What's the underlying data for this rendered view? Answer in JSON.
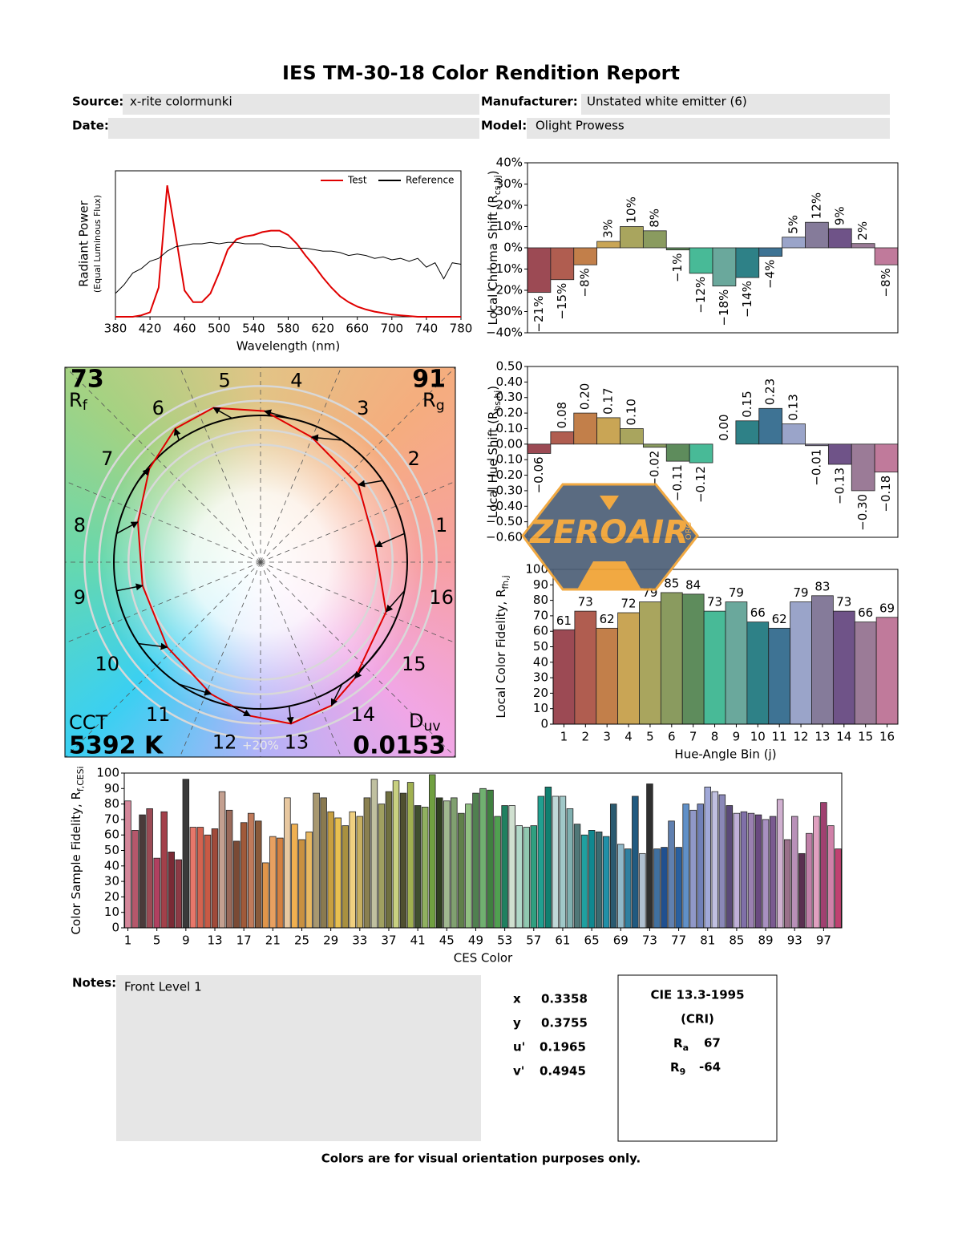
{
  "title": "IES TM-30-18 Color Rendition Report",
  "header": {
    "source_label": "Source:",
    "source": "x-rite colormunki",
    "manufacturer_label": "Manufacturer:",
    "manufacturer": "Unstated white emitter (6)",
    "date_label": "Date:",
    "model_label": "Model:",
    "model": "Olight Prowess"
  },
  "chart_data": [
    {
      "type": "line",
      "xlabel": "Wavelength (nm)",
      "ylabel": "Radiant Power",
      "ylabel_note": "(Equal Luminous Flux)",
      "legend": "upper right",
      "x": [
        380,
        390,
        400,
        410,
        420,
        430,
        440,
        450,
        460,
        470,
        480,
        490,
        500,
        510,
        520,
        530,
        540,
        550,
        560,
        570,
        580,
        590,
        600,
        610,
        620,
        630,
        640,
        650,
        660,
        670,
        680,
        690,
        700,
        710,
        720,
        730,
        740,
        750,
        760,
        770,
        780
      ],
      "xlim": [
        380,
        780
      ],
      "xticks": [
        380,
        420,
        460,
        500,
        540,
        580,
        620,
        660,
        700,
        740,
        780
      ],
      "ylim": [
        0,
        1
      ],
      "series": [
        {
          "name": "Test",
          "color": "#e00000",
          "values": [
            0,
            0,
            0,
            0.01,
            0.03,
            0.2,
            0.9,
            0.55,
            0.18,
            0.1,
            0.1,
            0.16,
            0.3,
            0.46,
            0.53,
            0.55,
            0.56,
            0.58,
            0.59,
            0.59,
            0.56,
            0.5,
            0.42,
            0.35,
            0.27,
            0.2,
            0.14,
            0.1,
            0.07,
            0.05,
            0.035,
            0.025,
            0.015,
            0.01,
            0.005,
            0,
            0,
            0,
            0,
            0,
            0
          ]
        },
        {
          "name": "Reference",
          "color": "#000000",
          "values": [
            0.16,
            0.22,
            0.3,
            0.33,
            0.38,
            0.4,
            0.45,
            0.48,
            0.49,
            0.5,
            0.5,
            0.51,
            0.5,
            0.51,
            0.51,
            0.5,
            0.5,
            0.5,
            0.48,
            0.48,
            0.47,
            0.47,
            0.47,
            0.46,
            0.45,
            0.45,
            0.44,
            0.42,
            0.43,
            0.42,
            0.4,
            0.41,
            0.39,
            0.4,
            0.38,
            0.4,
            0.34,
            0.37,
            0.26,
            0.37,
            0.36
          ]
        }
      ]
    },
    {
      "type": "vector",
      "rf": 73,
      "rf_label": [
        "R",
        "f"
      ],
      "rg": 91,
      "rg_label": [
        "R",
        "g"
      ],
      "cct_label": "CCT",
      "cct": "5392 K",
      "duv_label": [
        "D",
        "uv"
      ],
      "duv": 0.0153,
      "bin_labels": [
        1,
        2,
        3,
        4,
        5,
        6,
        7,
        8,
        9,
        10,
        11,
        12,
        13,
        14,
        15,
        16
      ],
      "scale_label": "+20%",
      "test_color": "#e00000",
      "reference_color": "#000000"
    },
    {
      "type": "bar",
      "ylabel": [
        "Local Chroma Shift (R",
        "cs,hj",
        ")"
      ],
      "values": [
        -21,
        -15,
        -8,
        3,
        10,
        8,
        -1,
        -12,
        -18,
        -14,
        -4,
        5,
        12,
        9,
        2,
        -8
      ],
      "value_labels": [
        "−21%",
        "−15%",
        "−8%",
        "3%",
        "10%",
        "8%",
        "−1%",
        "−12%",
        "−18%",
        "−14%",
        "−4%",
        "5%",
        "12%",
        "9%",
        "2%",
        "−8%"
      ],
      "colors": [
        "#9c4a54",
        "#b05d50",
        "#c27f4a",
        "#c9a555",
        "#a9a55e",
        "#8a9b5f",
        "#5e8c5c",
        "#48ba97",
        "#6aa89c",
        "#2e8187",
        "#3e7394",
        "#9aa4c9",
        "#857b9a",
        "#6f5388",
        "#9b7b97",
        "#c07a9b"
      ],
      "ylim": [
        -40,
        40
      ],
      "yticks": [
        {
          "value": 40,
          "label": "40%"
        },
        {
          "value": 30,
          "label": "30%"
        },
        {
          "value": 20,
          "label": "20%"
        },
        {
          "value": 10,
          "label": "10%"
        },
        {
          "value": 0,
          "label": "0%"
        },
        {
          "value": -10,
          "label": "−10%"
        },
        {
          "value": -20,
          "label": "−20%"
        },
        {
          "value": -30,
          "label": "−30%"
        },
        {
          "value": -40,
          "label": "−40%"
        }
      ]
    },
    {
      "type": "bar",
      "ylabel": [
        "Local Hue Shift (R",
        "hs,hj",
        ")"
      ],
      "values": [
        -0.06,
        0.08,
        0.2,
        0.17,
        0.1,
        -0.02,
        -0.11,
        -0.12,
        0,
        0.15,
        0.23,
        0.13,
        -0.01,
        -0.13,
        -0.3,
        -0.18
      ],
      "value_labels": [
        "−0.06",
        "0.08",
        "0.20",
        "0.17",
        "0.10",
        "−0.02",
        "−0.11",
        "−0.12",
        "0.00",
        "0.15",
        "0.23",
        "0.13",
        "−0.01",
        "−0.13",
        "−0.30",
        "−0.18"
      ],
      "colors": [
        "#9c4a54",
        "#b05d50",
        "#c27f4a",
        "#c9a555",
        "#a9a55e",
        "#8a9b5f",
        "#5e8c5c",
        "#48ba97",
        "#6aa89c",
        "#2e8187",
        "#3e7394",
        "#9aa4c9",
        "#857b9a",
        "#6f5388",
        "#9b7b97",
        "#c07a9b"
      ],
      "ylim": [
        -0.6,
        0.5
      ],
      "yticks": [
        {
          "value": 0.5,
          "label": "0.50"
        },
        {
          "value": 0.4,
          "label": "0.40"
        },
        {
          "value": 0.3,
          "label": "0.30"
        },
        {
          "value": 0.2,
          "label": "0.20"
        },
        {
          "value": 0.1,
          "label": "0.10"
        },
        {
          "value": 0,
          "label": "0.00"
        },
        {
          "value": -0.1,
          "label": "−0.10"
        },
        {
          "value": -0.2,
          "label": "−0.20"
        },
        {
          "value": -0.3,
          "label": "−0.30"
        },
        {
          "value": -0.4,
          "label": "−0.40"
        },
        {
          "value": -0.5,
          "label": "−0.50"
        },
        {
          "value": -0.6,
          "label": "−0.60"
        }
      ]
    },
    {
      "type": "bar",
      "xlabel": "Hue-Angle Bin (j)",
      "ylabel": [
        "Local Color Fidelity, R",
        "fh,j"
      ],
      "categories": [
        1,
        2,
        3,
        4,
        5,
        6,
        7,
        8,
        9,
        10,
        11,
        12,
        13,
        14,
        15,
        16
      ],
      "values": [
        61,
        73,
        62,
        72,
        79,
        85,
        84,
        73,
        79,
        66,
        62,
        79,
        83,
        73,
        66,
        69
      ],
      "colors": [
        "#9c4a54",
        "#b05d50",
        "#c27f4a",
        "#c9a555",
        "#a9a55e",
        "#8a9b5f",
        "#5e8c5c",
        "#48ba97",
        "#6aa89c",
        "#2e8187",
        "#3e7394",
        "#9aa4c9",
        "#857b9a",
        "#6f5388",
        "#9b7b97",
        "#c07a9b"
      ],
      "ylim": [
        0,
        100
      ],
      "yticks": [
        0,
        10,
        20,
        30,
        40,
        50,
        60,
        70,
        80,
        90,
        100
      ]
    },
    {
      "type": "bar",
      "xlabel": "CES Color",
      "ylabel": [
        "Color Sample Fidelity, R",
        "f,CESi"
      ],
      "categories": [
        1,
        null,
        null,
        null,
        5,
        null,
        null,
        null,
        9,
        null,
        null,
        null,
        13,
        null,
        null,
        null,
        17,
        null,
        null,
        null,
        21,
        null,
        null,
        null,
        25,
        null,
        null,
        null,
        29,
        null,
        null,
        null,
        33,
        null,
        null,
        null,
        37,
        null,
        null,
        null,
        41,
        null,
        null,
        null,
        45,
        null,
        null,
        null,
        49,
        null,
        null,
        null,
        53,
        null,
        null,
        null,
        57,
        null,
        null,
        null,
        61,
        null,
        null,
        null,
        65,
        null,
        null,
        null,
        69,
        null,
        null,
        null,
        73,
        null,
        null,
        null,
        77,
        null,
        null,
        null,
        81,
        null,
        null,
        null,
        85,
        null,
        null,
        null,
        89,
        null,
        null,
        null,
        93,
        null,
        null,
        null,
        97,
        null,
        null
      ],
      "values": [
        82,
        63,
        73,
        77,
        45,
        75,
        49,
        44,
        96,
        65,
        65,
        60,
        64,
        88,
        76,
        56,
        68,
        74,
        69,
        42,
        59,
        58,
        84,
        67,
        57,
        62,
        87,
        84,
        75,
        71,
        66,
        75,
        72,
        84,
        96,
        80,
        88,
        95,
        87,
        94,
        79,
        78,
        99,
        84,
        82,
        84,
        74,
        80,
        87,
        90,
        89,
        72,
        79,
        79,
        66,
        65,
        66,
        85,
        91,
        85,
        85,
        77,
        67,
        60,
        63,
        62,
        59,
        80,
        54,
        51,
        85,
        48,
        93,
        51,
        52,
        69,
        52,
        80,
        76,
        80,
        91,
        88,
        86,
        79,
        74,
        75,
        74,
        73,
        70,
        72,
        83,
        57,
        72,
        48,
        61,
        72,
        81,
        66,
        51
      ],
      "colors": [
        "#d4879a",
        "#b5576b",
        "#4a3a3a",
        "#9c4a55",
        "#b04060",
        "#a3404a",
        "#7a2a35",
        "#8c3a45",
        "#3a3a3a",
        "#e8776a",
        "#d4634f",
        "#c85a45",
        "#a04a3a",
        "#c4a090",
        "#9a6a5a",
        "#7a4a35",
        "#a05a3a",
        "#c07a5a",
        "#8a5a3a",
        "#e0954a",
        "#e8a060",
        "#d48040",
        "#e8c8a0",
        "#f0b050",
        "#c89040",
        "#e8b860",
        "#a89870",
        "#8a7a50",
        "#c8a040",
        "#e8c050",
        "#a89040",
        "#f0d080",
        "#c8b060",
        "#8a8050",
        "#c0c0a0",
        "#a0a060",
        "#707040",
        "#c8d080",
        "#505030",
        "#a0b050",
        "#405030",
        "#90b060",
        "#70a040",
        "#304020",
        "#a0b890",
        "#80a070",
        "#60804a",
        "#90c080",
        "#508050",
        "#70b070",
        "#408040",
        "#50a050",
        "#208060",
        "#d0e0d0",
        "#b0d8c8",
        "#90c8b0",
        "#30a080",
        "#20a090",
        "#108070",
        "#c0d8d8",
        "#a0c8c8",
        "#80b0b0",
        "#507878",
        "#20a0a0",
        "#108890",
        "#3a6a70",
        "#2090a8",
        "#2a5a70",
        "#90b8c8",
        "#3080a0",
        "#205a80",
        "#b0c0d0",
        "#303030",
        "#4070a0",
        "#205090",
        "#6080b0",
        "#2a60a0",
        "#6090c8",
        "#9098c8",
        "#7080b8",
        "#a0a8d8",
        "#c0c0e0",
        "#8a88b8",
        "#5a4a78",
        "#c0b0d8",
        "#8070a8",
        "#9a80b0",
        "#6a4a80",
        "#a890c0",
        "#7a5a90",
        "#d0b0d0",
        "#9a708a",
        "#b890b8",
        "#5a3050",
        "#c080a8",
        "#e0a0c0",
        "#a04070",
        "#d080a8",
        "#c04070"
      ],
      "ylim": [
        0,
        100
      ],
      "yticks": [
        0,
        10,
        20,
        30,
        40,
        50,
        60,
        70,
        80,
        90,
        100
      ]
    }
  ],
  "notes": {
    "label": "Notes:",
    "text": "Front Level 1"
  },
  "chromaticity": {
    "rows": [
      [
        "x",
        0.3358
      ],
      [
        "y",
        0.3755
      ],
      [
        "u'",
        0.1965
      ],
      [
        "v'",
        0.4945
      ]
    ]
  },
  "cri": {
    "title": "CIE 13.3-1995",
    "subtitle": "(CRI)",
    "ra_label": [
      "R",
      "a"
    ],
    "ra": 67,
    "r9_label": [
      "R",
      "9"
    ],
    "r9": -64
  },
  "watermark": {
    "text": "ZEROAIR",
    "sub": "ORG"
  },
  "footer": "Colors are for visual orientation purposes only."
}
